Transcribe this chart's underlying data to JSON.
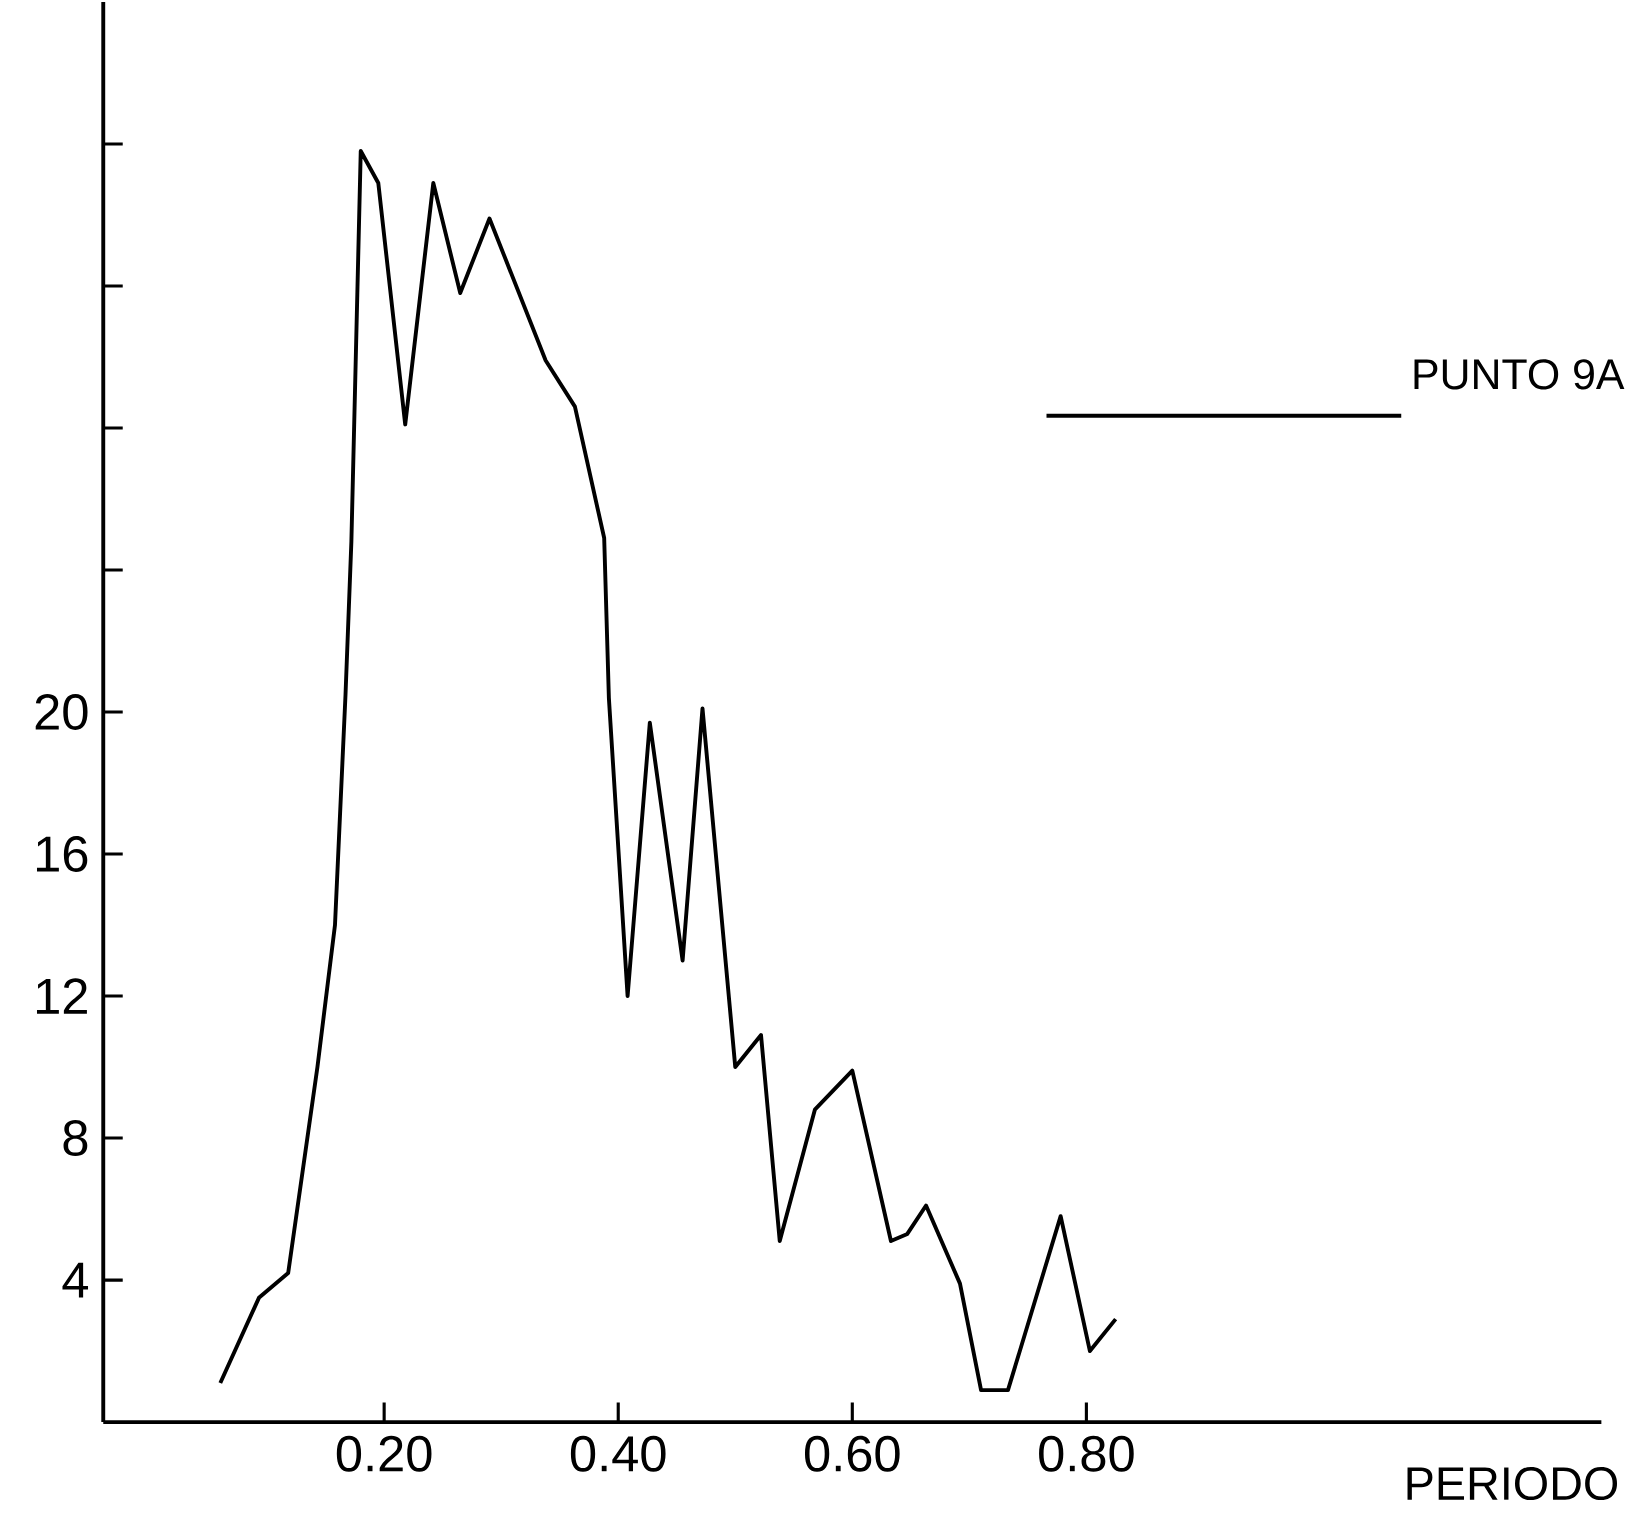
{
  "chart_data": {
    "type": "line",
    "xlabel": "PERIODO",
    "x": [
      0.06,
      0.093,
      0.118,
      0.143,
      0.158,
      0.167,
      0.172,
      0.18,
      0.195,
      0.218,
      0.242,
      0.265,
      0.29,
      0.338,
      0.363,
      0.388,
      0.392,
      0.408,
      0.427,
      0.455,
      0.472,
      0.5,
      0.522,
      0.538,
      0.568,
      0.6,
      0.633,
      0.647,
      0.663,
      0.692,
      0.71,
      0.733,
      0.778,
      0.803,
      0.825
    ],
    "series": [
      {
        "name": "PUNTO 9A",
        "color": "#000000",
        "values": [
          1.1,
          3.5,
          4.2,
          10.0,
          14.0,
          20.5,
          24.8,
          35.8,
          34.9,
          28.1,
          34.9,
          31.8,
          33.9,
          29.9,
          28.6,
          24.9,
          20.4,
          12.0,
          19.7,
          13.0,
          20.1,
          10.0,
          10.9,
          5.1,
          8.8,
          9.9,
          5.1,
          5.3,
          6.1,
          3.9,
          0.9,
          0.9,
          5.8,
          2.0,
          2.9
        ]
      }
    ],
    "xlim": [
      -0.04,
      1.24
    ],
    "ylim": [
      0,
      40
    ],
    "xticks": [
      {
        "value": 0.2,
        "label": "0.20"
      },
      {
        "value": 0.4,
        "label": "0.40"
      },
      {
        "value": 0.6,
        "label": "0.60"
      },
      {
        "value": 0.8,
        "label": "0.80"
      }
    ],
    "yticks": [
      4,
      8,
      12,
      16,
      20,
      {
        "value": 24,
        "label": null
      },
      {
        "value": 28,
        "label": null
      },
      {
        "value": 32,
        "label": null
      },
      {
        "value": 36,
        "label": null
      }
    ],
    "grid": false,
    "legend": "top right",
    "marker": "none",
    "line_style": "solid"
  }
}
